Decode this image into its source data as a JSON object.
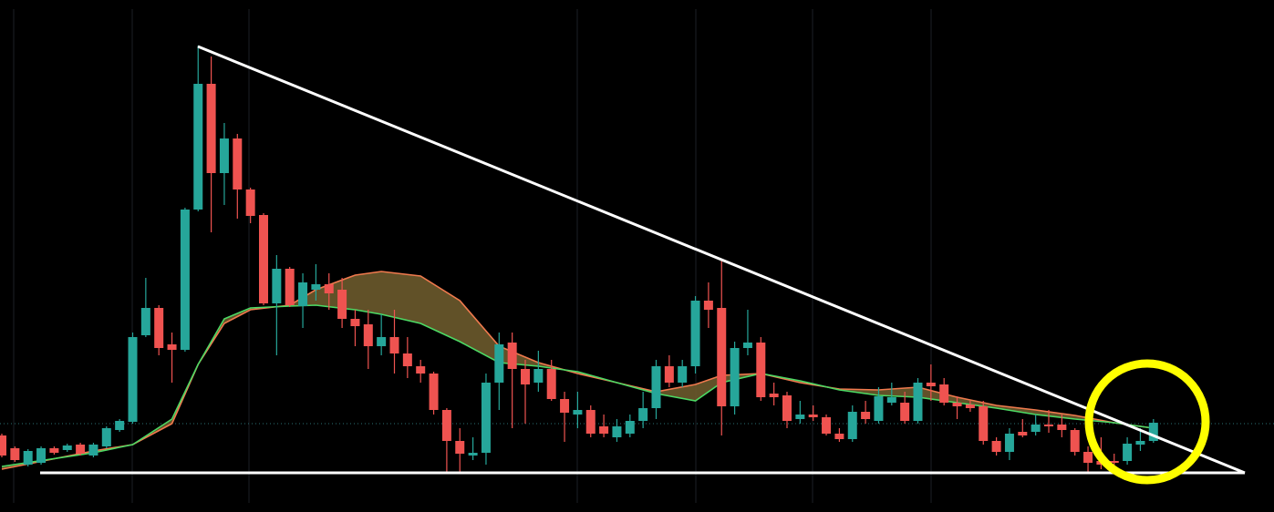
{
  "chart_data": {
    "type": "candlestick",
    "ylim": [
      0,
      562
    ],
    "up_color": "#26a69a",
    "down_color": "#ef5350",
    "open": [
      84,
      70,
      52,
      54,
      70,
      68,
      74,
      62,
      72,
      90,
      99,
      194,
      224,
      184,
      178,
      332,
      470,
      372,
      410,
      354,
      326,
      229,
      267,
      226,
      244,
      250,
      244,
      212,
      206,
      182,
      192,
      174,
      160,
      152,
      112,
      78,
      62,
      65,
      142,
      186,
      157,
      142,
      157,
      124,
      107,
      112,
      94,
      82,
      86,
      100,
      114,
      160,
      142,
      160,
      232,
      224,
      116,
      180,
      186,
      130,
      128,
      102,
      107,
      104,
      86,
      80,
      110,
      100,
      120,
      120,
      100,
      142,
      140,
      120,
      118,
      116,
      78,
      66,
      88,
      88,
      96,
      96,
      90,
      66,
      56,
      56,
      56,
      74,
      78
    ],
    "high": [
      86,
      72,
      69,
      72,
      72,
      75,
      76,
      76,
      94,
      102,
      197,
      257,
      227,
      197,
      334,
      512,
      500,
      427,
      415,
      356,
      328,
      282,
      269,
      262,
      272,
      262,
      257,
      222,
      222,
      217,
      222,
      192,
      167,
      154,
      114,
      92,
      82,
      152,
      197,
      197,
      167,
      177,
      167,
      132,
      132,
      117,
      107,
      102,
      107,
      132,
      167,
      172,
      167,
      237,
      252,
      277,
      187,
      222,
      192,
      142,
      132,
      122,
      117,
      107,
      92,
      117,
      122,
      137,
      142,
      132,
      147,
      162,
      147,
      127,
      122,
      122,
      82,
      92,
      102,
      107,
      112,
      107,
      92,
      72,
      82,
      64,
      82,
      92,
      102
    ],
    "low": [
      60,
      55,
      50,
      52,
      63,
      66,
      62,
      60,
      70,
      88,
      97,
      192,
      172,
      142,
      176,
      330,
      307,
      337,
      322,
      317,
      227,
      172,
      225,
      202,
      232,
      222,
      202,
      182,
      157,
      172,
      152,
      147,
      142,
      107,
      42,
      42,
      57,
      52,
      112,
      92,
      97,
      132,
      122,
      77,
      92,
      82,
      82,
      77,
      82,
      92,
      102,
      137,
      137,
      152,
      202,
      84,
      107,
      172,
      122,
      117,
      92,
      97,
      100,
      84,
      77,
      77,
      97,
      97,
      117,
      97,
      97,
      122,
      117,
      102,
      110,
      74,
      62,
      57,
      82,
      84,
      87,
      82,
      62,
      42,
      47,
      50,
      52,
      67,
      76
    ],
    "close": [
      62,
      57,
      67,
      70,
      65,
      73,
      64,
      74,
      92,
      100,
      192,
      224,
      180,
      178,
      332,
      470,
      372,
      410,
      354,
      325,
      229,
      267,
      227,
      252,
      250,
      240,
      212,
      204,
      182,
      192,
      174,
      160,
      152,
      112,
      78,
      64,
      65,
      142,
      184,
      157,
      140,
      157,
      124,
      109,
      112,
      86,
      86,
      94,
      100,
      114,
      160,
      142,
      160,
      232,
      222,
      116,
      180,
      186,
      126,
      126,
      100,
      107,
      104,
      86,
      80,
      110,
      102,
      127,
      126,
      100,
      142,
      138,
      120,
      116,
      114,
      78,
      66,
      86,
      84,
      96,
      94,
      90,
      66,
      54,
      52,
      54,
      75,
      78,
      98
    ],
    "series": [
      {
        "color": "#f07a4e",
        "x": [
          0,
          7,
          10,
          13,
          15,
          17,
          19,
          22,
          24,
          27,
          29,
          32,
          35,
          38,
          41,
          44,
          47,
          50,
          53,
          55,
          58,
          61,
          64,
          67,
          70,
          73,
          76,
          79,
          82,
          85,
          88
        ],
        "values": [
          47,
          67,
          74,
          97,
          162,
          207,
          222,
          227,
          244,
          260,
          264,
          259,
          232,
          182,
          164,
          152,
          142,
          132,
          140,
          150,
          152,
          142,
          135,
          134,
          137,
          126,
          117,
          112,
          106,
          98,
          92
        ]
      },
      {
        "color": "#4cd964",
        "x": [
          0,
          7,
          10,
          13,
          15,
          17,
          19,
          22,
          24,
          27,
          29,
          32,
          35,
          38,
          41,
          44,
          47,
          50,
          53,
          55,
          58,
          61,
          64,
          67,
          70,
          73,
          76,
          79,
          82,
          85,
          88
        ],
        "values": [
          50,
          65,
          74,
          102,
          162,
          212,
          224,
          226,
          227,
          222,
          217,
          207,
          187,
          164,
          160,
          154,
          142,
          130,
          122,
          142,
          152,
          144,
          134,
          128,
          126,
          120,
          114,
          107,
          102,
          98,
          92
        ]
      }
    ],
    "band_fill": "#6b5a2c"
  }
}
